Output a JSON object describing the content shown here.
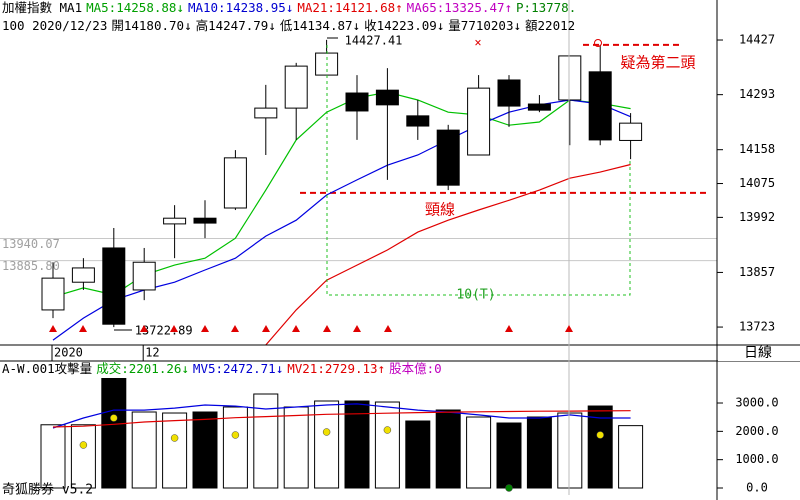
{
  "header": {
    "line1": [
      {
        "text": "加權指數 MA1",
        "color": "#000000"
      },
      {
        "text": "MA5:14258.88↓",
        "color": "#00a000"
      },
      {
        "text": "MA10:14238.95↓",
        "color": "#0000d0"
      },
      {
        "text": "MA21:14121.68↑",
        "color": "#e00000"
      },
      {
        "text": "MA65:13325.47↑",
        "color": "#c000c0"
      },
      {
        "text": "P:13778.",
        "color": "#008000"
      }
    ],
    "line2": [
      {
        "text": "100 2020/12/23",
        "color": "#000000"
      },
      {
        "text": "開14180.70↓",
        "color": "#000000"
      },
      {
        "text": "高14247.79↓",
        "color": "#000000"
      },
      {
        "text": "低14134.87↓",
        "color": "#000000"
      },
      {
        "text": "收14223.09↓",
        "color": "#000000"
      },
      {
        "text": "量7710203↓",
        "color": "#000000"
      },
      {
        "text": "額22012",
        "color": "#000000"
      }
    ],
    "period": "日線"
  },
  "chart_data": [
    {
      "type": "candlestick",
      "categories": [
        "2020",
        null,
        null,
        "12",
        null,
        null,
        null,
        null,
        null,
        null,
        null,
        null,
        null,
        null,
        null,
        null,
        null,
        null,
        null,
        null
      ],
      "open": [
        13765,
        13833,
        13917,
        13814,
        13976,
        13990,
        14015,
        14236,
        14260,
        14341,
        14297,
        14304,
        14241,
        14206,
        14145,
        14329,
        14270,
        14280,
        14349,
        14180.7
      ],
      "close": [
        13843,
        13868,
        13730,
        13882,
        13990,
        13978,
        14138,
        14260,
        14363,
        14395,
        14253,
        14268,
        14216,
        14071,
        14309,
        14265,
        14255,
        14388,
        14182,
        14223.09
      ],
      "high": [
        13882,
        13892,
        13966,
        13917,
        14022,
        14034,
        14157,
        14317,
        14371,
        14427.41,
        14341,
        14358,
        14280,
        14219,
        14341,
        14341,
        14292,
        14388,
        14415,
        14247.79
      ],
      "low": [
        13745,
        13814,
        13722.89,
        13789,
        13892,
        13941,
        14010,
        14145,
        14182,
        14341,
        14182,
        14084,
        14182,
        14059,
        14145,
        14214,
        14250,
        14169,
        14169,
        14134.87
      ],
      "series": [
        {
          "color": "#00c000",
          "values": [
            13797,
            13819,
            13802,
            13851,
            13875,
            13892,
            13941,
            14059,
            14182,
            14250,
            14285,
            14299,
            14280,
            14250,
            14243,
            14218,
            14226,
            14280,
            14272,
            14258.88
          ]
        },
        {
          "color": "#0000e0",
          "values": [
            13691,
            13745,
            13789,
            13814,
            13833,
            13863,
            13892,
            13946,
            13985,
            14047,
            14084,
            14120,
            14145,
            14182,
            14218,
            14250,
            14268,
            14280,
            14270,
            14238.95
          ]
        },
        {
          "color": "#e00000",
          "values": [
            null,
            null,
            null,
            null,
            null,
            null,
            null,
            13679,
            13765,
            13838,
            13875,
            13912,
            13956,
            13985,
            14010,
            14034,
            14059,
            14088,
            14103,
            14121.68
          ]
        }
      ],
      "ylim": [
        13679,
        14481
      ],
      "yticks": [
        13723,
        13857,
        13992,
        14075,
        14158,
        14293,
        14427
      ],
      "reference_lines": [
        13940.07,
        {
          "value": 13885.8,
          "label": "13885.80"
        }
      ],
      "neckline": {
        "value": 14052,
        "label": "頸線",
        "color": "#e00000"
      },
      "second_head": {
        "value": 14415,
        "label": "疑為第二頭",
        "color": "#e00000"
      },
      "count_label": "10(T)"
    },
    {
      "type": "bar",
      "title": [
        {
          "text": "A-W.001攻擊量",
          "color": "#000000"
        },
        {
          "text": "成交:2201.26↓",
          "color": "#00a000"
        },
        {
          "text": "MV5:2472.71↓",
          "color": "#0000d0"
        },
        {
          "text": "MV21:2729.13↑",
          "color": "#e00000"
        },
        {
          "text": "股本億:0",
          "color": "#c000c0"
        }
      ],
      "values": [
        2232,
        2232,
        3900,
        2683,
        2647,
        2683,
        2859,
        3318,
        2859,
        3071,
        3071,
        3035,
        2365,
        2753,
        2506,
        2294,
        2506,
        2647,
        2894,
        2201.26
      ],
      "colors": [
        "#ffffff",
        "#ffffff",
        "#000000",
        "#ffffff",
        "#ffffff",
        "#000000",
        "#ffffff",
        "#ffffff",
        "#ffffff",
        "#ffffff",
        "#000000",
        "#ffffff",
        "#000000",
        "#000000",
        "#ffffff",
        "#000000",
        "#000000",
        "#ffffff",
        "#000000",
        "#ffffff"
      ],
      "series": [
        {
          "color": "#0000e0",
          "values": [
            2118,
            2470,
            2750,
            2750,
            2820,
            2930,
            2890,
            2790,
            2860,
            2930,
            2970,
            2860,
            2750,
            2680,
            2580,
            2470,
            2470,
            2580,
            2470,
            2472.71
          ]
        },
        {
          "color": "#e00000",
          "values": [
            2153,
            2180,
            2250,
            2330,
            2380,
            2420,
            2480,
            2520,
            2560,
            2600,
            2620,
            2640,
            2660,
            2680,
            2690,
            2700,
            2710,
            2715,
            2720,
            2729.13
          ]
        }
      ],
      "dots": {
        "values": [
          null,
          1518,
          2471,
          null,
          1765,
          null,
          1871,
          null,
          null,
          1977,
          null,
          2047,
          null,
          null,
          null,
          0,
          null,
          null,
          1871,
          null
        ],
        "colors": [
          null,
          "#f0e000",
          "#f0e000",
          null,
          "#f0e000",
          null,
          "#f0e000",
          null,
          null,
          "#f0e000",
          null,
          "#f0e000",
          null,
          null,
          null,
          "#008000",
          null,
          null,
          "#f0e000",
          null
        ]
      },
      "ylim": [
        -247,
        3883
      ],
      "yticks": [
        {
          "value": 0,
          "label": "0.0"
        },
        {
          "value": 1000,
          "label": "1000.0"
        },
        {
          "value": 2000,
          "label": "2000.0"
        },
        {
          "value": 3000,
          "label": "3000.0"
        }
      ]
    }
  ],
  "footer": "奇狐勝券 v5.2"
}
